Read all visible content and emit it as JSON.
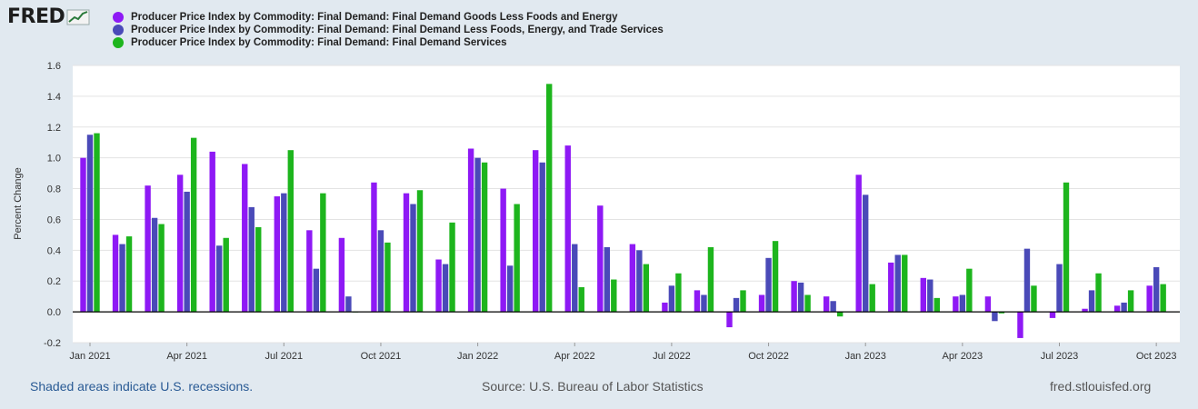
{
  "brand": {
    "logo_text": "FRED",
    "logo_icon": "chart-line-icon"
  },
  "footer": {
    "recession_note": "Shaded areas indicate U.S. recessions.",
    "source": "Source: U.S. Bureau of Labor Statistics",
    "site": "fred.stlouisfed.org"
  },
  "chart_data": {
    "type": "bar",
    "title": "",
    "xlabel": "",
    "ylabel": "Percent Change",
    "ylim": [
      -0.2,
      1.6
    ],
    "yticks": [
      -0.2,
      0.0,
      0.2,
      0.4,
      0.6,
      0.8,
      1.0,
      1.2,
      1.4,
      1.6
    ],
    "ytick_labels": [
      "-0.2",
      "0.0",
      "0.2",
      "0.4",
      "0.6",
      "0.8",
      "1.0",
      "1.2",
      "1.4",
      "1.6"
    ],
    "grid": true,
    "legend_position": "top",
    "categories": [
      "Jan 2021",
      "Feb 2021",
      "Mar 2021",
      "Apr 2021",
      "May 2021",
      "Jun 2021",
      "Jul 2021",
      "Aug 2021",
      "Sep 2021",
      "Oct 2021",
      "Nov 2021",
      "Dec 2021",
      "Jan 2022",
      "Feb 2022",
      "Mar 2022",
      "Apr 2022",
      "May 2022",
      "Jun 2022",
      "Jul 2022",
      "Aug 2022",
      "Sep 2022",
      "Oct 2022",
      "Nov 2022",
      "Dec 2022",
      "Jan 2023",
      "Feb 2023",
      "Mar 2023",
      "Apr 2023",
      "May 2023",
      "Jun 2023",
      "Jul 2023",
      "Aug 2023",
      "Sep 2023",
      "Oct 2023"
    ],
    "xtick_labels": [
      "Jan 2021",
      "Apr 2021",
      "Jul 2021",
      "Oct 2021",
      "Jan 2022",
      "Apr 2022",
      "Jul 2022",
      "Oct 2022",
      "Jan 2023",
      "Apr 2023",
      "Jul 2023",
      "Oct 2023"
    ],
    "series": [
      {
        "name": "Producer Price Index by Commodity: Final Demand: Final Demand Goods Less Foods and Energy",
        "color": "#8e19f5",
        "values": [
          1.0,
          0.5,
          0.82,
          0.89,
          1.04,
          0.96,
          0.75,
          0.53,
          0.48,
          0.84,
          0.77,
          0.34,
          1.06,
          0.8,
          1.05,
          1.08,
          0.69,
          0.44,
          0.06,
          0.14,
          -0.1,
          0.11,
          0.2,
          0.1,
          0.89,
          0.32,
          0.22,
          0.1,
          0.1,
          -0.17,
          -0.04,
          0.02,
          0.04,
          0.17
        ]
      },
      {
        "name": "Producer Price Index by Commodity: Final Demand: Final Demand Less Foods, Energy, and Trade Services",
        "color": "#4a4ab8",
        "values": [
          1.15,
          0.44,
          0.61,
          0.78,
          0.43,
          0.68,
          0.77,
          0.28,
          0.1,
          0.53,
          0.7,
          0.31,
          1.0,
          0.3,
          0.97,
          0.44,
          0.42,
          0.4,
          0.17,
          0.11,
          0.09,
          0.35,
          0.19,
          0.07,
          0.76,
          0.37,
          0.21,
          0.11,
          -0.06,
          0.41,
          0.31,
          0.14,
          0.06,
          0.29
        ]
      },
      {
        "name": "Producer Price Index by Commodity: Final Demand: Final Demand Services",
        "color": "#1db51d",
        "values": [
          1.16,
          0.49,
          0.57,
          1.13,
          0.48,
          0.55,
          1.05,
          0.77,
          0.0,
          0.45,
          0.79,
          0.58,
          0.97,
          0.7,
          1.48,
          0.16,
          0.21,
          0.31,
          0.25,
          0.42,
          0.14,
          0.46,
          0.11,
          -0.03,
          0.18,
          0.37,
          0.09,
          0.28,
          -0.01,
          0.17,
          0.84,
          0.25,
          0.14,
          0.18
        ]
      }
    ]
  }
}
